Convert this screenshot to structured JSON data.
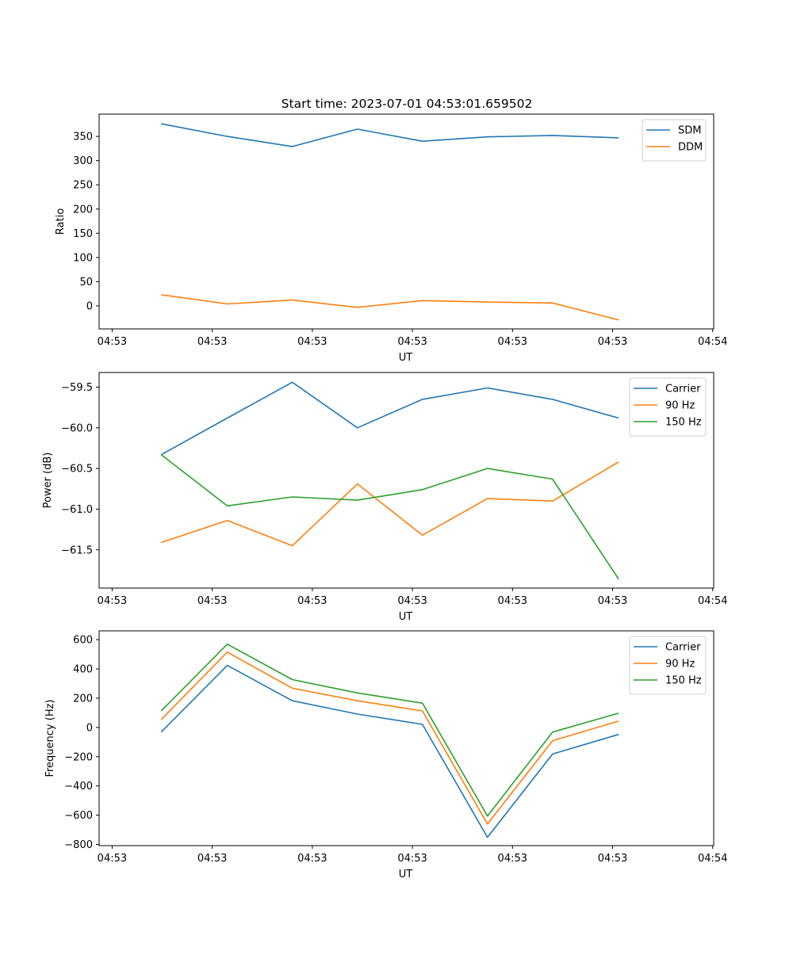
{
  "figure": {
    "title": "Start time: 2023-07-01 04:53:01.659502"
  },
  "chart_data": [
    {
      "type": "line",
      "title": "Start time: 2023-07-01 04:53:01.659502",
      "xlabel": "UT",
      "ylabel": "Ratio",
      "x": [
        0.49,
        1.15,
        1.8,
        2.45,
        3.1,
        3.75,
        4.4,
        5.06
      ],
      "x_unit_note": "x in tick-interval units; ticks at 0..6",
      "xlim": [
        -0.13,
        6.01
      ],
      "xticks": [
        0,
        1,
        2,
        3,
        4,
        5,
        6
      ],
      "xtick_labels": [
        "04:53",
        "04:53",
        "04:53",
        "04:53",
        "04:53",
        "04:53",
        "04:54"
      ],
      "ylim": [
        -47.5,
        396
      ],
      "yticks": [
        0,
        50,
        100,
        150,
        200,
        250,
        300,
        350
      ],
      "ytick_labels": [
        "0",
        "50",
        "100",
        "150",
        "200",
        "250",
        "300",
        "350"
      ],
      "grid": false,
      "legend": "top-right",
      "series": [
        {
          "name": "SDM",
          "color": "#1f77b4",
          "values": [
            376,
            350,
            329,
            365,
            340,
            349,
            352,
            347
          ]
        },
        {
          "name": "DDM",
          "color": "#ff7f0e",
          "values": [
            23,
            4,
            12,
            -3,
            11,
            8,
            6,
            -29
          ]
        }
      ]
    },
    {
      "type": "line",
      "title": "",
      "xlabel": "UT",
      "ylabel": "Power (dB)",
      "x": [
        0.49,
        1.15,
        1.8,
        2.45,
        3.1,
        3.75,
        4.4,
        5.06
      ],
      "xlim": [
        -0.13,
        6.01
      ],
      "xticks": [
        0,
        1,
        2,
        3,
        4,
        5,
        6
      ],
      "xtick_labels": [
        "04:53",
        "04:53",
        "04:53",
        "04:53",
        "04:53",
        "04:53",
        "04:54"
      ],
      "ylim": [
        -61.97,
        -59.32
      ],
      "yticks": [
        -61.5,
        -61.0,
        -60.5,
        -60.0,
        -59.5
      ],
      "ytick_labels": [
        "−61.5",
        "−61.0",
        "−60.5",
        "−60.0",
        "−59.5"
      ],
      "grid": false,
      "legend": "top-right",
      "series": [
        {
          "name": "Carrier",
          "color": "#1f77b4",
          "values": [
            -60.33,
            -59.88,
            -59.44,
            -60.0,
            -59.65,
            -59.51,
            -59.65,
            -59.88
          ]
        },
        {
          "name": "90 Hz",
          "color": "#ff7f0e",
          "values": [
            -61.41,
            -61.14,
            -61.45,
            -60.69,
            -61.32,
            -60.87,
            -60.9,
            -60.42
          ]
        },
        {
          "name": "150 Hz",
          "color": "#2ca02c",
          "values": [
            -60.33,
            -60.96,
            -60.85,
            -60.89,
            -60.76,
            -60.5,
            -60.63,
            -61.86
          ]
        }
      ]
    },
    {
      "type": "line",
      "title": "",
      "xlabel": "UT",
      "ylabel": "Frequency (Hz)",
      "x": [
        0.49,
        1.15,
        1.8,
        2.45,
        3.1,
        3.75,
        4.4,
        5.06
      ],
      "xlim": [
        -0.13,
        6.01
      ],
      "xticks": [
        0,
        1,
        2,
        3,
        4,
        5,
        6
      ],
      "xtick_labels": [
        "04:53",
        "04:53",
        "04:53",
        "04:53",
        "04:53",
        "04:53",
        "04:54"
      ],
      "ylim": [
        -808,
        660
      ],
      "yticks": [
        -800,
        -600,
        -400,
        -200,
        0,
        200,
        400,
        600
      ],
      "ytick_labels": [
        "−800",
        "−600",
        "−400",
        "−200",
        "0",
        "200",
        "400",
        "600"
      ],
      "grid": false,
      "legend": "top-right",
      "series": [
        {
          "name": "Carrier",
          "color": "#1f77b4",
          "values": [
            -32,
            424,
            182,
            91,
            21,
            -751,
            -182,
            -48
          ]
        },
        {
          "name": "90 Hz",
          "color": "#ff7f0e",
          "values": [
            54,
            515,
            268,
            182,
            113,
            -660,
            -91,
            43
          ]
        },
        {
          "name": "150 Hz",
          "color": "#2ca02c",
          "values": [
            113,
            569,
            327,
            236,
            166,
            -606,
            -32,
            97
          ]
        }
      ]
    }
  ]
}
